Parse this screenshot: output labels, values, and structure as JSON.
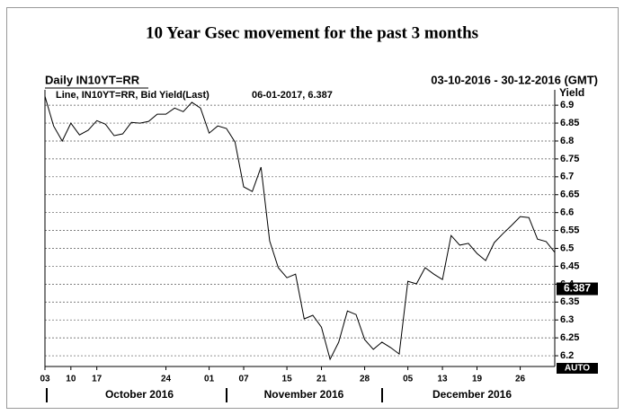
{
  "chart_data": {
    "type": "line",
    "title": "10 Year Gsec movement for the past 3 months",
    "header_left": "Daily IN10YT=RR",
    "header_right": "03-10-2016 - 30-12-2016 (GMT)",
    "last_reading": "06-01-2017, 6.387",
    "last_value": 6.387,
    "y_label": "Yield",
    "scale_mode": "AUTO",
    "months": [
      "October 2016",
      "November 2016",
      "December 2016"
    ],
    "categories": [
      "03",
      null,
      null,
      "10",
      null,
      null,
      "17",
      null,
      null,
      null,
      null,
      null,
      null,
      null,
      "24",
      null,
      null,
      null,
      null,
      "01",
      null,
      null,
      null,
      "07",
      null,
      null,
      null,
      null,
      "15",
      null,
      null,
      null,
      "21",
      null,
      null,
      null,
      null,
      "28",
      null,
      null,
      null,
      null,
      "05",
      null,
      null,
      null,
      "13",
      null,
      null,
      null,
      "19",
      null,
      null,
      null,
      null,
      "26",
      null,
      null,
      null,
      null
    ],
    "series": [
      {
        "name": "Line, IN10YT=RR, Bid Yield(Last)",
        "color": "#000000",
        "values": [
          6.925,
          6.842,
          6.8,
          6.85,
          6.817,
          6.83,
          6.857,
          6.847,
          6.815,
          6.82,
          6.852,
          6.85,
          6.855,
          6.875,
          6.875,
          6.892,
          6.882,
          6.908,
          6.892,
          6.822,
          6.842,
          6.835,
          6.797,
          6.672,
          6.659,
          6.727,
          6.521,
          6.446,
          6.418,
          6.428,
          6.303,
          6.313,
          6.28,
          6.19,
          6.238,
          6.325,
          6.315,
          6.245,
          6.218,
          6.238,
          6.223,
          6.205,
          6.408,
          6.401,
          6.446,
          6.428,
          6.413,
          6.536,
          6.509,
          6.514,
          6.486,
          6.466,
          6.516,
          6.541,
          6.564,
          6.589,
          6.586,
          6.526,
          6.519,
          6.489
        ]
      }
    ],
    "ylim": [
      6.17,
      6.943
    ],
    "yticks": [
      6.2,
      6.25,
      6.3,
      6.35,
      6.4,
      6.45,
      6.5,
      6.55,
      6.6,
      6.65,
      6.7,
      6.75,
      6.8,
      6.85,
      6.9
    ],
    "grid": true
  }
}
